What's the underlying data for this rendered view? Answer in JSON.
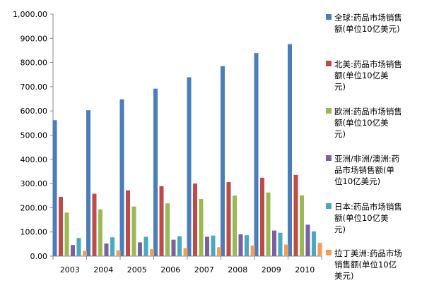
{
  "chart_data": {
    "type": "bar",
    "categories": [
      "2003",
      "2004",
      "2005",
      "2006",
      "2007",
      "2008",
      "2009",
      "2010"
    ],
    "ylim": [
      0,
      1000
    ],
    "yticks": [
      "0.00",
      "100.00",
      "200.00",
      "300.00",
      "400.00",
      "500.00",
      "600.00",
      "700.00",
      "800.00",
      "900.00",
      "1,000.00"
    ],
    "grid": false,
    "legend_position": "right",
    "series": [
      {
        "name": "全球:药品市场销售额(单位10亿美元)",
        "legend_lines": [
          "全球:药品市场销售",
          "额(单位10亿美元)"
        ],
        "color": "#4a7ebb",
        "values": [
          562,
          603,
          648,
          692,
          739,
          785,
          839,
          876
        ]
      },
      {
        "name": "北美:药品市场销售额(单位10亿美元)",
        "legend_lines": [
          "北美:药品市场销售",
          "额(单位10亿美",
          "元)"
        ],
        "color": "#be4b48",
        "values": [
          245,
          258,
          272,
          289,
          300,
          306,
          324,
          336
        ]
      },
      {
        "name": "欧洲:药品市场销售额(单位10亿美元)",
        "legend_lines": [
          "欧洲:药品市场销售",
          "额(单位10亿美",
          "元)"
        ],
        "color": "#98b954",
        "values": [
          180,
          193,
          205,
          218,
          236,
          250,
          263,
          251
        ]
      },
      {
        "name": "亚洲/非洲/澳洲:药品市场销售额(单位10亿美元)",
        "legend_lines": [
          "亚洲/非洲/澳洲:药",
          "品市场销售额(单",
          "位10亿美元)"
        ],
        "color": "#7d60a0",
        "values": [
          46,
          52,
          57,
          68,
          80,
          90,
          106,
          130
        ]
      },
      {
        "name": "日本:药品市场销售额(单位10亿美元)",
        "legend_lines": [
          "日本:药品市场销售",
          "额(单位10亿美",
          "元)"
        ],
        "color": "#46aac5",
        "values": [
          75,
          78,
          80,
          82,
          85,
          87,
          97,
          102
        ]
      },
      {
        "name": "拉丁美洲:药品市场销售额(单位10亿美元)",
        "legend_lines": [
          "拉丁美洲:药品市场",
          "销售额(单位10亿",
          "美元)"
        ],
        "color": "#f59d56",
        "values": [
          22,
          24,
          29,
          33,
          37,
          43,
          48,
          55
        ]
      }
    ]
  }
}
